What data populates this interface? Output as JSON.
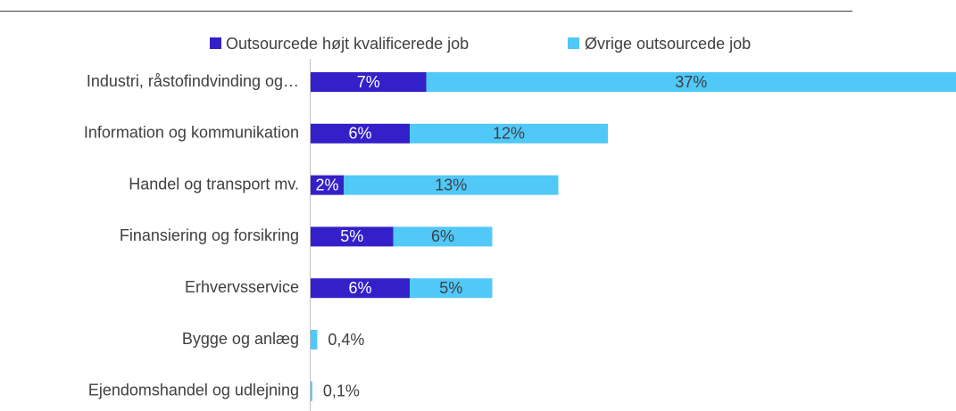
{
  "chart_data": {
    "type": "bar",
    "orientation": "horizontal",
    "stacked": true,
    "legend": "top",
    "categories": [
      "Industri, råstofindvinding og…",
      "Information og kommunikation",
      "Handel og transport mv.",
      "Finansiering og forsikring",
      "Erhvervsservice",
      "Bygge og anlæg",
      "Ejendomshandel og udlejning"
    ],
    "series": [
      {
        "name": "Outsourcede højt kvalificerede job",
        "color": "#3320c8",
        "values": [
          7,
          6,
          2,
          5,
          6,
          null,
          null
        ],
        "value_labels": [
          "7%",
          "6%",
          "2%",
          "5%",
          "6%",
          null,
          null
        ]
      },
      {
        "name": "Øvrige outsourcede job",
        "color": "#50c8f8",
        "values": [
          37,
          12,
          13,
          6,
          5,
          0.4,
          0.1
        ],
        "value_labels": [
          "37%",
          "12%",
          "13%",
          "6%",
          "5%",
          "0,4%",
          "0,1%"
        ]
      }
    ]
  }
}
